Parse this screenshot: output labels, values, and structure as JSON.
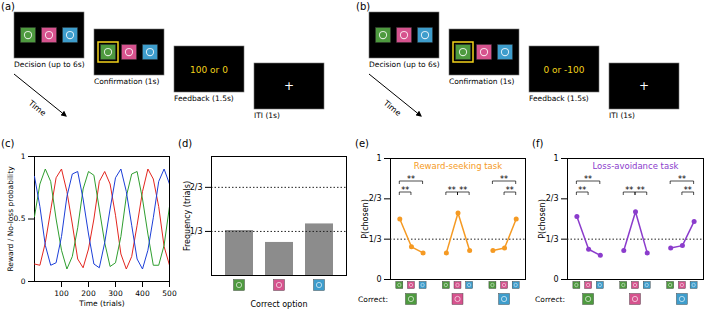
{
  "diagrams": [
    {
      "panel": "(a)",
      "time_label": "Time",
      "screens": [
        {
          "label": "Decision (up to 6s)"
        },
        {
          "label": "Confirmation (1s)"
        },
        {
          "label": "Feedback (1.5s)",
          "text": "100 or 0"
        },
        {
          "label": "ITI (1s)",
          "text": "+"
        }
      ]
    },
    {
      "panel": "(b)",
      "time_label": "Time",
      "screens": [
        {
          "label": "Decision (up to 6s)"
        },
        {
          "label": "Confirmation (1s)"
        },
        {
          "label": "Feedback (1.5s)",
          "text": "0 or -100"
        },
        {
          "label": "ITI (1s)",
          "text": "+"
        }
      ]
    }
  ],
  "chart_data": [
    {
      "panel": "(c)",
      "type": "line",
      "xlabel": "Time (trials)",
      "ylabel": "Reward / No-loss probability",
      "x": [
        0,
        20,
        40,
        60,
        80,
        100,
        120,
        140,
        160,
        180,
        200,
        220,
        240,
        260,
        280,
        300,
        320,
        340,
        360,
        380,
        400,
        420,
        440,
        460,
        480,
        500
      ],
      "series": [
        {
          "color": "#e3261f",
          "values": [
            0.14,
            0.13,
            0.31,
            0.57,
            0.83,
            0.9,
            0.72,
            0.46,
            0.18,
            0.11,
            0.26,
            0.5,
            0.8,
            0.88,
            0.78,
            0.53,
            0.22,
            0.1,
            0.2,
            0.45,
            0.72,
            0.9,
            0.82,
            0.6,
            0.28,
            0.13
          ]
        },
        {
          "color": "#2f9e2f",
          "values": [
            0.52,
            0.78,
            0.9,
            0.8,
            0.5,
            0.25,
            0.1,
            0.2,
            0.43,
            0.74,
            0.88,
            0.85,
            0.58,
            0.31,
            0.12,
            0.15,
            0.36,
            0.68,
            0.86,
            0.88,
            0.66,
            0.38,
            0.13,
            0.13,
            0.29,
            0.6
          ]
        },
        {
          "color": "#1d3fd8",
          "values": [
            0.84,
            0.6,
            0.29,
            0.13,
            0.15,
            0.36,
            0.68,
            0.86,
            0.88,
            0.66,
            0.38,
            0.14,
            0.11,
            0.31,
            0.58,
            0.83,
            0.9,
            0.72,
            0.45,
            0.18,
            0.1,
            0.25,
            0.51,
            0.8,
            0.9,
            0.78
          ]
        }
      ],
      "xlim": [
        0,
        500
      ],
      "xticks": [
        100,
        200,
        300,
        400,
        500
      ],
      "ylim": [
        0,
        1
      ],
      "yticks": [
        0,
        0.5,
        1
      ]
    },
    {
      "panel": "(d)",
      "type": "bar",
      "xlabel": "Correct option",
      "ylabel": "Frequency (trials)",
      "categories": [
        null,
        null,
        null
      ],
      "values": [
        0.34,
        0.25,
        0.39
      ],
      "color": "#8c8c8c",
      "ylim": [
        0,
        0.9
      ],
      "yticks": [
        {
          "value": 0.3333333333333333,
          "label": "1/3"
        },
        {
          "value": 0.6666666666666666,
          "label": "2/3"
        }
      ],
      "hlines": [
        0.3333333333333333,
        0.6666666666666666
      ]
    },
    {
      "panel": "(e)",
      "type": "line",
      "title": "Reward-seeking task",
      "xlabel": "Correct:",
      "ylabel": "P(chosen)",
      "color": "#f59a23",
      "marker": "circle",
      "ylim": [
        0,
        1
      ],
      "yticks": [
        0,
        {
          "value": 0.3333333333333333,
          "label": "1/3"
        },
        {
          "value": 0.6666666666666666,
          "label": "2/3"
        },
        1
      ],
      "hlines": [
        0.3333333333333333
      ],
      "groups": [
        {
          "values": [
            0.5,
            0.27,
            0.22
          ],
          "significance": [
            {
              "pair": [
                0,
                1
              ],
              "label": "**"
            },
            {
              "pair": [
                0,
                2
              ],
              "label": "**"
            }
          ]
        },
        {
          "values": [
            0.22,
            0.55,
            0.24
          ],
          "significance": [
            {
              "pair": [
                0,
                1
              ],
              "label": "**"
            },
            {
              "pair": [
                1,
                2
              ],
              "label": "**"
            }
          ]
        },
        {
          "values": [
            0.24,
            0.26,
            0.5
          ],
          "significance": [
            {
              "pair": [
                0,
                2
              ],
              "label": "**"
            },
            {
              "pair": [
                1,
                2
              ],
              "label": "**"
            }
          ]
        }
      ]
    },
    {
      "panel": "(f)",
      "type": "line",
      "title": "Loss-avoidance task",
      "xlabel": "Correct:",
      "ylabel": "P(chosen)",
      "color": "#8b3ccc",
      "marker": "circle",
      "ylim": [
        0,
        1
      ],
      "yticks": [
        0,
        {
          "value": 0.3333333333333333,
          "label": "1/3"
        },
        {
          "value": 0.6666666666666666,
          "label": "2/3"
        },
        1
      ],
      "hlines": [
        0.3333333333333333
      ],
      "groups": [
        {
          "values": [
            0.52,
            0.25,
            0.2
          ],
          "significance": [
            {
              "pair": [
                0,
                1
              ],
              "label": "**"
            },
            {
              "pair": [
                0,
                2
              ],
              "label": "**"
            }
          ]
        },
        {
          "values": [
            0.24,
            0.56,
            0.22
          ],
          "significance": [
            {
              "pair": [
                0,
                1
              ],
              "label": "**"
            },
            {
              "pair": [
                1,
                2
              ],
              "label": "**"
            }
          ]
        },
        {
          "values": [
            0.26,
            0.28,
            0.48
          ],
          "significance": [
            {
              "pair": [
                0,
                2
              ],
              "label": "**"
            },
            {
              "pair": [
                1,
                2
              ],
              "label": "**"
            }
          ]
        }
      ]
    }
  ]
}
